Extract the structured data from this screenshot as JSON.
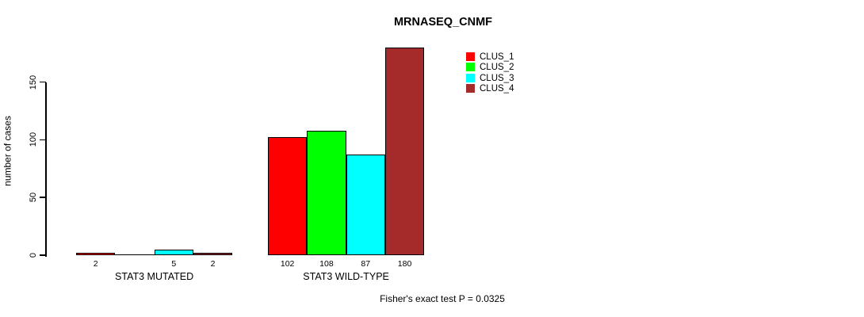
{
  "chart_data": {
    "type": "bar",
    "title": "MRNASEQ_CNMF",
    "xlabel": "",
    "ylabel": "number of cases",
    "ylim": [
      0,
      180
    ],
    "yticks": [
      0,
      50,
      100,
      150
    ],
    "grid": false,
    "legend_position": "top-right",
    "categories": [
      "STAT3 MUTATED",
      "STAT3 WILD-TYPE"
    ],
    "series": [
      {
        "name": "CLUS_1",
        "color": "#FF0000",
        "values": [
          2,
          102
        ],
        "bar_labels": [
          "2",
          "102"
        ]
      },
      {
        "name": "CLUS_2",
        "color": "#00FF00",
        "values": [
          0,
          108
        ],
        "bar_labels": [
          "",
          "108"
        ]
      },
      {
        "name": "CLUS_3",
        "color": "#00FFFF",
        "values": [
          5,
          87
        ],
        "bar_labels": [
          "5",
          "87"
        ]
      },
      {
        "name": "CLUS_4",
        "color": "#A52A2A",
        "values": [
          2,
          180
        ],
        "bar_labels": [
          "2",
          "180"
        ]
      }
    ],
    "annotation": "Fisher's exact test P = 0.0325"
  }
}
